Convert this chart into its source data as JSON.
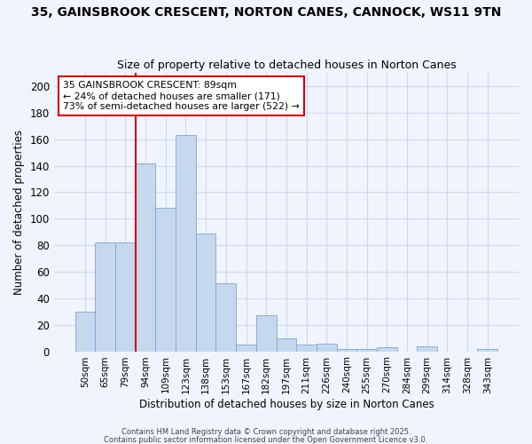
{
  "title1": "35, GAINSBROOK CRESCENT, NORTON CANES, CANNOCK, WS11 9TN",
  "title2": "Size of property relative to detached houses in Norton Canes",
  "xlabel": "Distribution of detached houses by size in Norton Canes",
  "ylabel": "Number of detached properties",
  "categories": [
    "50sqm",
    "65sqm",
    "79sqm",
    "94sqm",
    "109sqm",
    "123sqm",
    "138sqm",
    "153sqm",
    "167sqm",
    "182sqm",
    "197sqm",
    "211sqm",
    "226sqm",
    "240sqm",
    "255sqm",
    "270sqm",
    "284sqm",
    "299sqm",
    "314sqm",
    "328sqm",
    "343sqm"
  ],
  "values": [
    30,
    82,
    82,
    142,
    108,
    163,
    89,
    51,
    5,
    27,
    10,
    5,
    6,
    2,
    2,
    3,
    0,
    4,
    0,
    0,
    2
  ],
  "bar_color": "#c5d8ee",
  "bar_edge_color": "#7aa8d0",
  "grid_color": "#d0d8e8",
  "background_color": "#f0f4ff",
  "annotation_text": "35 GAINSBROOK CRESCENT: 89sqm\n← 24% of detached houses are smaller (171)\n73% of semi-detached houses are larger (522) →",
  "annotation_box_color": "#ffffff",
  "annotation_box_edge": "#cc0000",
  "redline_color": "#cc0000",
  "footer1": "Contains HM Land Registry data © Crown copyright and database right 2025.",
  "footer2": "Contains public sector information licensed under the Open Government Licence v3.0.",
  "ylim": [
    0,
    210
  ],
  "yticks": [
    0,
    20,
    40,
    60,
    80,
    100,
    120,
    140,
    160,
    180,
    200
  ]
}
